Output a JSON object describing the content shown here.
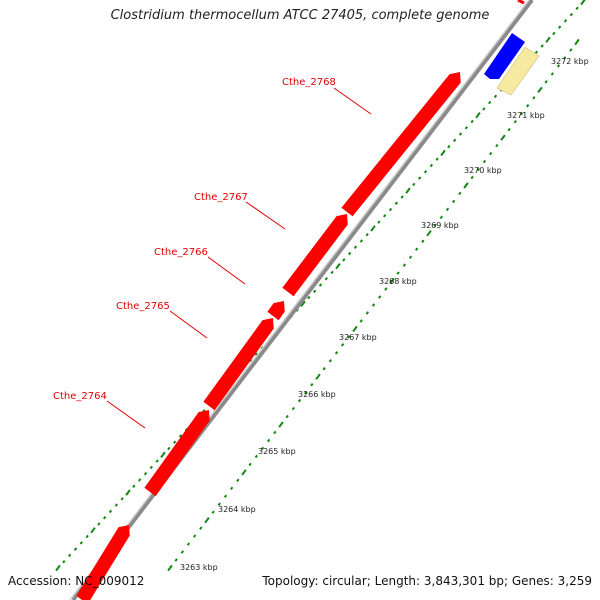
{
  "title": "Clostridium thermocellum ATCC 27405, complete genome",
  "accession": "Accession: NC_009012",
  "topology": "Topology: circular; Length: 3,843,301 bp; Genes: 3,259",
  "colors": {
    "gene_forward": "#ff0000",
    "gene_blue": "#0000ff",
    "gene_pale": "#f5eaa0",
    "backbone": "#999999",
    "dots": "#118811",
    "label": "#e00000"
  },
  "kbp_labels": [
    "3263 kbp",
    "3264 kbp",
    "3265 kbp",
    "3266 kbp",
    "3267 kbp",
    "3268 kbp",
    "3269 kbp",
    "3270 kbp",
    "3271 kbp",
    "3272 kbp"
  ],
  "genes": [
    {
      "name": "Cthe_2764",
      "strand": "forward"
    },
    {
      "name": "Cthe_2765",
      "strand": "forward"
    },
    {
      "name": "Cthe_2766",
      "strand": "forward"
    },
    {
      "name": "Cthe_2767",
      "strand": "forward"
    },
    {
      "name": "Cthe_2768",
      "strand": "forward"
    }
  ],
  "other_features": [
    {
      "color": "blue",
      "strand": "reverse"
    },
    {
      "color": "pale",
      "strand": "forward"
    }
  ]
}
